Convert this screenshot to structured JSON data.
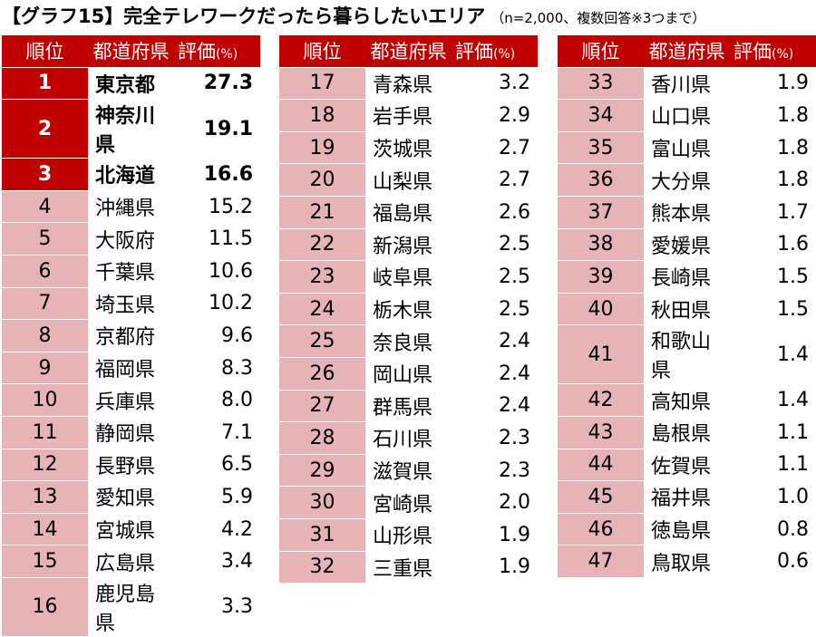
{
  "title": "【グラフ15】完全テレワークだったら暮らしたいエリア",
  "title_note": "（n=2,000、複数回答※3つまで）",
  "headers": {
    "rank": "順位",
    "prefecture": "都道府県",
    "value": "評価",
    "unit": "(%)"
  },
  "colors": {
    "header_bg": "#c00000",
    "rank_bg": "#e6b3b7",
    "top_rank_bg": "#c00000"
  },
  "chart_data": {
    "type": "table",
    "title": "【グラフ15】完全テレワークだったら暮らしたいエリア",
    "columns": [
      "順位",
      "都道府県",
      "評価(%)"
    ],
    "rows": [
      {
        "rank": "1",
        "prefecture": "東京都",
        "value": "27.3"
      },
      {
        "rank": "2",
        "prefecture": "神奈川県",
        "value": "19.1"
      },
      {
        "rank": "3",
        "prefecture": "北海道",
        "value": "16.6"
      },
      {
        "rank": "4",
        "prefecture": "沖縄県",
        "value": "15.2"
      },
      {
        "rank": "5",
        "prefecture": "大阪府",
        "value": "11.5"
      },
      {
        "rank": "6",
        "prefecture": "千葉県",
        "value": "10.6"
      },
      {
        "rank": "7",
        "prefecture": "埼玉県",
        "value": "10.2"
      },
      {
        "rank": "8",
        "prefecture": "京都府",
        "value": "9.6"
      },
      {
        "rank": "9",
        "prefecture": "福岡県",
        "value": "8.3"
      },
      {
        "rank": "10",
        "prefecture": "兵庫県",
        "value": "8.0"
      },
      {
        "rank": "11",
        "prefecture": "静岡県",
        "value": "7.1"
      },
      {
        "rank": "12",
        "prefecture": "長野県",
        "value": "6.5"
      },
      {
        "rank": "13",
        "prefecture": "愛知県",
        "value": "5.9"
      },
      {
        "rank": "14",
        "prefecture": "宮城県",
        "value": "4.2"
      },
      {
        "rank": "15",
        "prefecture": "広島県",
        "value": "3.4"
      },
      {
        "rank": "16",
        "prefecture": "鹿児島県",
        "value": "3.3"
      },
      {
        "rank": "17",
        "prefecture": "青森県",
        "value": "3.2"
      },
      {
        "rank": "18",
        "prefecture": "岩手県",
        "value": "2.9"
      },
      {
        "rank": "19",
        "prefecture": "茨城県",
        "value": "2.7"
      },
      {
        "rank": "20",
        "prefecture": "山梨県",
        "value": "2.7"
      },
      {
        "rank": "21",
        "prefecture": "福島県",
        "value": "2.6"
      },
      {
        "rank": "22",
        "prefecture": "新潟県",
        "value": "2.5"
      },
      {
        "rank": "23",
        "prefecture": "岐阜県",
        "value": "2.5"
      },
      {
        "rank": "24",
        "prefecture": "栃木県",
        "value": "2.5"
      },
      {
        "rank": "25",
        "prefecture": "奈良県",
        "value": "2.4"
      },
      {
        "rank": "26",
        "prefecture": "岡山県",
        "value": "2.4"
      },
      {
        "rank": "27",
        "prefecture": "群馬県",
        "value": "2.4"
      },
      {
        "rank": "28",
        "prefecture": "石川県",
        "value": "2.3"
      },
      {
        "rank": "29",
        "prefecture": "滋賀県",
        "value": "2.3"
      },
      {
        "rank": "30",
        "prefecture": "宮崎県",
        "value": "2.0"
      },
      {
        "rank": "31",
        "prefecture": "山形県",
        "value": "1.9"
      },
      {
        "rank": "32",
        "prefecture": "三重県",
        "value": "1.9"
      },
      {
        "rank": "33",
        "prefecture": "香川県",
        "value": "1.9"
      },
      {
        "rank": "34",
        "prefecture": "山口県",
        "value": "1.8"
      },
      {
        "rank": "35",
        "prefecture": "富山県",
        "value": "1.8"
      },
      {
        "rank": "36",
        "prefecture": "大分県",
        "value": "1.8"
      },
      {
        "rank": "37",
        "prefecture": "熊本県",
        "value": "1.7"
      },
      {
        "rank": "38",
        "prefecture": "愛媛県",
        "value": "1.6"
      },
      {
        "rank": "39",
        "prefecture": "長崎県",
        "value": "1.5"
      },
      {
        "rank": "40",
        "prefecture": "秋田県",
        "value": "1.5"
      },
      {
        "rank": "41",
        "prefecture": "和歌山県",
        "value": "1.4"
      },
      {
        "rank": "42",
        "prefecture": "高知県",
        "value": "1.4"
      },
      {
        "rank": "43",
        "prefecture": "島根県",
        "value": "1.1"
      },
      {
        "rank": "44",
        "prefecture": "佐賀県",
        "value": "1.1"
      },
      {
        "rank": "45",
        "prefecture": "福井県",
        "value": "1.0"
      },
      {
        "rank": "46",
        "prefecture": "徳島県",
        "value": "0.8"
      },
      {
        "rank": "47",
        "prefecture": "鳥取県",
        "value": "0.6"
      }
    ]
  }
}
